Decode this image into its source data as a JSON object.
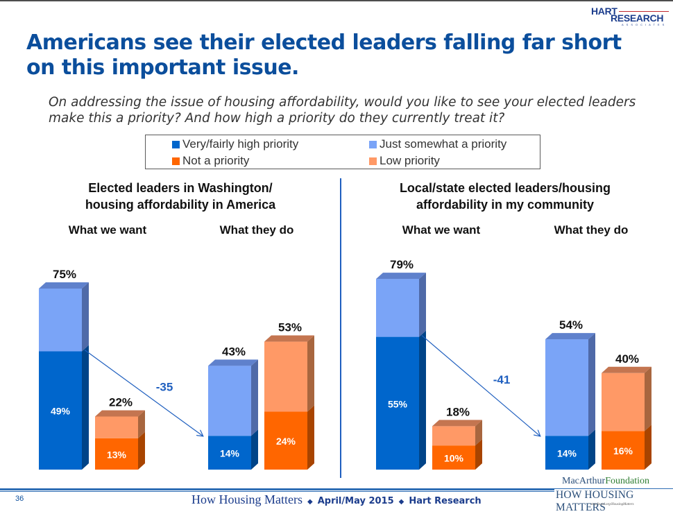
{
  "header": {
    "logo_top": "HART",
    "logo_bottom": "RESEARCH",
    "logo_sub": "ASSOCIATES",
    "title": "Americans see their elected leaders falling far short on this important issue.",
    "question": "On addressing the issue of housing affordability, would you like to see your elected leaders make this a priority?  And how high a priority do they currently treat it?"
  },
  "legend": [
    {
      "label": "Very/fairly high priority",
      "color": "#0066cc"
    },
    {
      "label": "Just somewhat a priority",
      "color": "#7aa4f7"
    },
    {
      "label": "Not a priority",
      "color": "#ff6600"
    },
    {
      "label": "Low priority",
      "color": "#ff9966"
    }
  ],
  "panels": [
    {
      "title_line1": "Elected leaders in Washington/",
      "title_line2": "housing affordability in America",
      "col_want": "What we want",
      "col_do": "What they do",
      "gap_label": "-35"
    },
    {
      "title_line1": "Local/state elected leaders/housing",
      "title_line2": "affordability in my community",
      "col_want": "What we want",
      "col_do": "What they do",
      "gap_label": "-41"
    }
  ],
  "chart_data": [
    {
      "type": "bar",
      "title": "Elected leaders in Washington/housing affordability in America",
      "categories": [
        "What we want - priority",
        "What we want - not priority",
        "What they do - priority",
        "What they do - not priority"
      ],
      "stacked": true,
      "ylim": [
        0,
        100
      ],
      "bars": [
        {
          "group": "What we want",
          "kind": "priority",
          "bottom": 49,
          "top_segment": 26,
          "total": 75,
          "bottom_label": "49%",
          "total_label": "75%"
        },
        {
          "group": "What we want",
          "kind": "not",
          "bottom": 13,
          "top_segment": 9,
          "total": 22,
          "bottom_label": "13%",
          "total_label": "22%"
        },
        {
          "group": "What they do",
          "kind": "priority",
          "bottom": 14,
          "top_segment": 29,
          "total": 43,
          "bottom_label": "14%",
          "total_label": "43%"
        },
        {
          "group": "What they do",
          "kind": "not",
          "bottom": 24,
          "top_segment": 29,
          "total": 53,
          "bottom_label": "24%",
          "total_label": "53%"
        }
      ],
      "annotation": "-35"
    },
    {
      "type": "bar",
      "title": "Local/state elected leaders/housing affordability in my community",
      "categories": [
        "What we want - priority",
        "What we want - not priority",
        "What they do - priority",
        "What they do - not priority"
      ],
      "stacked": true,
      "ylim": [
        0,
        100
      ],
      "bars": [
        {
          "group": "What we want",
          "kind": "priority",
          "bottom": 55,
          "top_segment": 24,
          "total": 79,
          "bottom_label": "55%",
          "total_label": "79%"
        },
        {
          "group": "What we want",
          "kind": "not",
          "bottom": 10,
          "top_segment": 8,
          "total": 18,
          "bottom_label": "10%",
          "total_label": "18%"
        },
        {
          "group": "What they do",
          "kind": "priority",
          "bottom": 14,
          "top_segment": 40,
          "total": 54,
          "bottom_label": "14%",
          "total_label": "54%"
        },
        {
          "group": "What they do",
          "kind": "not",
          "bottom": 16,
          "top_segment": 24,
          "total": 40,
          "bottom_label": "16%",
          "total_label": "40%"
        }
      ],
      "annotation": "-41"
    }
  ],
  "colors": {
    "priority_dark": "#0066cc",
    "priority_light": "#7aa4f7",
    "not_dark": "#ff6600",
    "not_light": "#ff9966",
    "arrow": "#1f5fbf"
  },
  "footer": {
    "page_number": "36",
    "series_title": "How Housing Matters",
    "date": "April/May 2015",
    "firm": "Hart Research",
    "diamond": "◆",
    "mac_a": "MacArthur",
    "mac_b": "Foundation",
    "hhm": "HOW HOUSING MATTERS",
    "url": "macfound.org/HousingMatters"
  }
}
